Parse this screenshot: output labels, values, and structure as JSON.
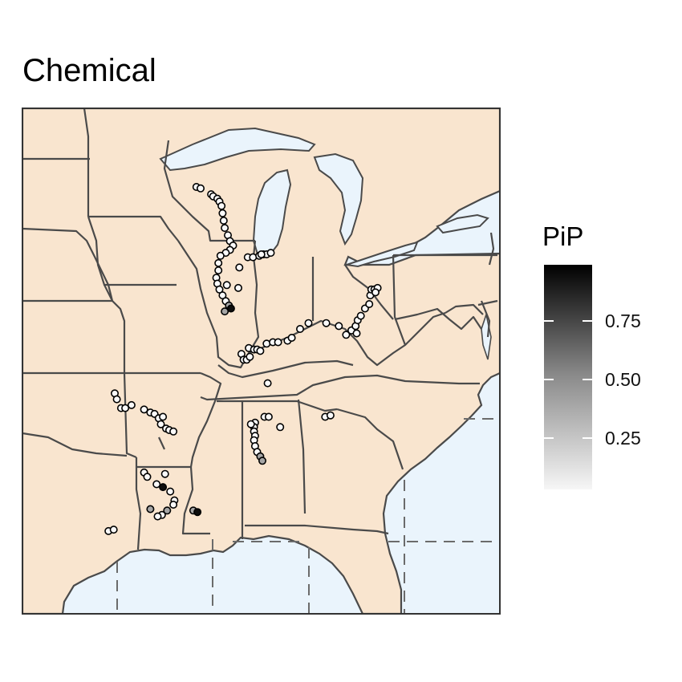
{
  "title": "Chemical",
  "legend": {
    "title": "PiP",
    "ticks": [
      "0.75",
      "0.50",
      "0.25"
    ]
  },
  "colors": {
    "land": "#f9e5cf",
    "water": "#eaf4fc",
    "border": "#4a4a4a",
    "graticule": "#6b6b6b",
    "point_fill_low": "#ffffff",
    "point_fill_high": "#000000"
  },
  "chart_data": {
    "type": "scatter",
    "value_name": "PiP",
    "color_scale": [
      0,
      1
    ],
    "note_values": "site points, color = PiP",
    "points": [
      {
        "lon": -91.1,
        "lat": 44.6,
        "pip": 0.02
      },
      {
        "lon": -90.9,
        "lat": 44.55,
        "pip": 0.02
      },
      {
        "lon": -90.4,
        "lat": 44.35,
        "pip": 0.02
      },
      {
        "lon": -90.3,
        "lat": 44.28,
        "pip": 0.02
      },
      {
        "lon": -90.1,
        "lat": 44.2,
        "pip": 0.02
      },
      {
        "lon": -90.0,
        "lat": 44.1,
        "pip": 0.02
      },
      {
        "lon": -89.9,
        "lat": 43.95,
        "pip": 0.02
      },
      {
        "lon": -89.85,
        "lat": 43.7,
        "pip": 0.02
      },
      {
        "lon": -89.8,
        "lat": 43.45,
        "pip": 0.02
      },
      {
        "lon": -89.75,
        "lat": 43.2,
        "pip": 0.02
      },
      {
        "lon": -89.6,
        "lat": 42.95,
        "pip": 0.02
      },
      {
        "lon": -89.5,
        "lat": 42.75,
        "pip": 0.02
      },
      {
        "lon": -89.35,
        "lat": 42.6,
        "pip": 0.02
      },
      {
        "lon": -89.5,
        "lat": 42.45,
        "pip": 0.02
      },
      {
        "lon": -89.7,
        "lat": 42.35,
        "pip": 0.02
      },
      {
        "lon": -89.95,
        "lat": 42.25,
        "pip": 0.02
      },
      {
        "lon": -90.05,
        "lat": 42.0,
        "pip": 0.02
      },
      {
        "lon": -90.05,
        "lat": 41.75,
        "pip": 0.02
      },
      {
        "lon": -90.15,
        "lat": 41.5,
        "pip": 0.02
      },
      {
        "lon": -90.1,
        "lat": 41.3,
        "pip": 0.02
      },
      {
        "lon": -90.0,
        "lat": 41.1,
        "pip": 0.02
      },
      {
        "lon": -89.85,
        "lat": 40.9,
        "pip": 0.02
      },
      {
        "lon": -89.7,
        "lat": 40.7,
        "pip": 0.02
      },
      {
        "lon": -89.55,
        "lat": 40.55,
        "pip": 0.35
      },
      {
        "lon": -89.45,
        "lat": 40.45,
        "pip": 0.95
      },
      {
        "lon": -89.65,
        "lat": 41.25,
        "pip": 0.02
      },
      {
        "lon": -89.05,
        "lat": 41.85,
        "pip": 0.02
      },
      {
        "lon": -88.65,
        "lat": 42.2,
        "pip": 0.02
      },
      {
        "lon": -88.4,
        "lat": 42.2,
        "pip": 0.02
      },
      {
        "lon": -88.1,
        "lat": 42.25,
        "pip": 0.02
      },
      {
        "lon": -87.9,
        "lat": 42.3,
        "pip": 0.02
      },
      {
        "lon": -87.75,
        "lat": 42.3,
        "pip": 0.02
      },
      {
        "lon": -87.55,
        "lat": 42.35,
        "pip": 0.02
      },
      {
        "lon": -88.0,
        "lat": 42.3,
        "pip": 0.02
      },
      {
        "lon": -88.6,
        "lat": 39.1,
        "pip": 0.02
      },
      {
        "lon": -88.35,
        "lat": 39.05,
        "pip": 0.02
      },
      {
        "lon": -88.2,
        "lat": 39.05,
        "pip": 0.02
      },
      {
        "lon": -88.05,
        "lat": 39.0,
        "pip": 0.02
      },
      {
        "lon": -87.75,
        "lat": 39.25,
        "pip": 0.02
      },
      {
        "lon": -87.45,
        "lat": 39.3,
        "pip": 0.02
      },
      {
        "lon": -87.2,
        "lat": 39.3,
        "pip": 0.02
      },
      {
        "lon": -86.75,
        "lat": 39.35,
        "pip": 0.02
      },
      {
        "lon": -86.55,
        "lat": 39.45,
        "pip": 0.02
      },
      {
        "lon": -86.15,
        "lat": 39.75,
        "pip": 0.02
      },
      {
        "lon": -85.75,
        "lat": 39.95,
        "pip": 0.02
      },
      {
        "lon": -84.9,
        "lat": 39.95,
        "pip": 0.02
      },
      {
        "lon": -84.3,
        "lat": 39.85,
        "pip": 0.02
      },
      {
        "lon": -83.95,
        "lat": 39.55,
        "pip": 0.02
      },
      {
        "lon": -83.7,
        "lat": 39.7,
        "pip": 0.02
      },
      {
        "lon": -83.5,
        "lat": 39.85,
        "pip": 0.02
      },
      {
        "lon": -83.4,
        "lat": 40.05,
        "pip": 0.02
      },
      {
        "lon": -83.25,
        "lat": 40.2,
        "pip": 0.02
      },
      {
        "lon": -83.05,
        "lat": 40.45,
        "pip": 0.02
      },
      {
        "lon": -82.85,
        "lat": 40.6,
        "pip": 0.02
      },
      {
        "lon": -82.8,
        "lat": 40.9,
        "pip": 0.02
      },
      {
        "lon": -82.75,
        "lat": 41.1,
        "pip": 0.02
      },
      {
        "lon": -82.6,
        "lat": 41.1,
        "pip": 0.02
      },
      {
        "lon": -82.45,
        "lat": 41.15,
        "pip": 0.02
      },
      {
        "lon": -82.55,
        "lat": 41.0,
        "pip": 0.02
      },
      {
        "lon": -83.45,
        "lat": 39.6,
        "pip": 0.02
      },
      {
        "lon": -88.95,
        "lat": 38.9,
        "pip": 0.02
      },
      {
        "lon": -88.85,
        "lat": 38.7,
        "pip": 0.02
      },
      {
        "lon": -88.7,
        "lat": 38.7,
        "pip": 0.02
      },
      {
        "lon": -88.55,
        "lat": 38.8,
        "pip": 0.02
      },
      {
        "lon": -89.1,
        "lat": 41.15,
        "pip": 0.02
      },
      {
        "lon": -89.75,
        "lat": 40.35,
        "pip": 0.35
      },
      {
        "lon": -87.7,
        "lat": 37.9,
        "pip": 0.02
      },
      {
        "lon": -95.0,
        "lat": 37.55,
        "pip": 0.02
      },
      {
        "lon": -94.9,
        "lat": 37.35,
        "pip": 0.02
      },
      {
        "lon": -94.7,
        "lat": 37.05,
        "pip": 0.02
      },
      {
        "lon": -94.5,
        "lat": 37.05,
        "pip": 0.02
      },
      {
        "lon": -94.2,
        "lat": 37.15,
        "pip": 0.02
      },
      {
        "lon": -93.6,
        "lat": 37.0,
        "pip": 0.02
      },
      {
        "lon": -93.3,
        "lat": 36.9,
        "pip": 0.02
      },
      {
        "lon": -93.1,
        "lat": 36.85,
        "pip": 0.02
      },
      {
        "lon": -92.9,
        "lat": 36.7,
        "pip": 0.02
      },
      {
        "lon": -92.8,
        "lat": 36.5,
        "pip": 0.02
      },
      {
        "lon": -92.55,
        "lat": 36.35,
        "pip": 0.02
      },
      {
        "lon": -92.4,
        "lat": 36.3,
        "pip": 0.02
      },
      {
        "lon": -92.2,
        "lat": 36.25,
        "pip": 0.02
      },
      {
        "lon": -92.7,
        "lat": 36.75,
        "pip": 0.02
      },
      {
        "lon": -87.85,
        "lat": 36.75,
        "pip": 0.02
      },
      {
        "lon": -87.65,
        "lat": 36.75,
        "pip": 0.02
      },
      {
        "lon": -87.1,
        "lat": 36.4,
        "pip": 0.02
      },
      {
        "lon": -88.3,
        "lat": 36.55,
        "pip": 0.02
      },
      {
        "lon": -88.35,
        "lat": 36.4,
        "pip": 0.02
      },
      {
        "lon": -88.35,
        "lat": 36.25,
        "pip": 0.02
      },
      {
        "lon": -88.3,
        "lat": 36.1,
        "pip": 0.02
      },
      {
        "lon": -88.35,
        "lat": 35.95,
        "pip": 0.02
      },
      {
        "lon": -88.3,
        "lat": 35.75,
        "pip": 0.02
      },
      {
        "lon": -88.2,
        "lat": 35.55,
        "pip": 0.02
      },
      {
        "lon": -88.05,
        "lat": 35.4,
        "pip": 0.35
      },
      {
        "lon": -87.95,
        "lat": 35.25,
        "pip": 0.35
      },
      {
        "lon": -88.5,
        "lat": 36.5,
        "pip": 0.02
      },
      {
        "lon": -84.95,
        "lat": 36.75,
        "pip": 0.02
      },
      {
        "lon": -84.7,
        "lat": 36.8,
        "pip": 0.02
      },
      {
        "lon": -93.6,
        "lat": 34.85,
        "pip": 0.02
      },
      {
        "lon": -93.45,
        "lat": 34.7,
        "pip": 0.02
      },
      {
        "lon": -92.6,
        "lat": 34.8,
        "pip": 0.02
      },
      {
        "lon": -93.0,
        "lat": 34.45,
        "pip": 0.02
      },
      {
        "lon": -92.7,
        "lat": 34.35,
        "pip": 0.95
      },
      {
        "lon": -92.35,
        "lat": 34.2,
        "pip": 0.02
      },
      {
        "lon": -92.15,
        "lat": 33.9,
        "pip": 0.02
      },
      {
        "lon": -92.2,
        "lat": 33.75,
        "pip": 0.02
      },
      {
        "lon": -93.3,
        "lat": 33.6,
        "pip": 0.35
      },
      {
        "lon": -92.5,
        "lat": 33.55,
        "pip": 0.35
      },
      {
        "lon": -92.75,
        "lat": 33.4,
        "pip": 0.02
      },
      {
        "lon": -92.95,
        "lat": 33.35,
        "pip": 0.02
      },
      {
        "lon": -91.25,
        "lat": 33.55,
        "pip": 0.35
      },
      {
        "lon": -91.05,
        "lat": 33.5,
        "pip": 0.95
      },
      {
        "lon": -95.3,
        "lat": 32.85,
        "pip": 0.02
      },
      {
        "lon": -95.05,
        "lat": 32.9,
        "pip": 0.02
      }
    ]
  }
}
